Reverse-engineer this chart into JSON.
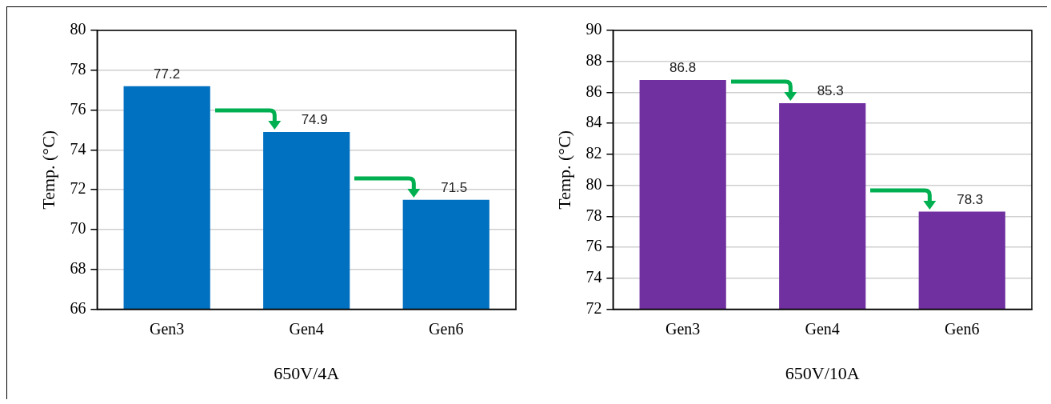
{
  "chart_data": [
    {
      "type": "bar",
      "xlabel": "650V/4A",
      "ylabel": "Temp. (°C)",
      "categories": [
        "Gen3",
        "Gen4",
        "Gen6"
      ],
      "values": [
        77.2,
        74.9,
        71.5
      ],
      "color": "#0070c0",
      "ylim": [
        66,
        80
      ],
      "yticks": [
        66,
        68,
        70,
        72,
        74,
        76,
        78,
        80
      ],
      "grid": "y",
      "data_labels": true
    },
    {
      "type": "bar",
      "xlabel": "650V/10A",
      "ylabel": "Temp. (°C)",
      "categories": [
        "Gen3",
        "Gen4",
        "Gen6"
      ],
      "values": [
        86.8,
        85.3,
        78.3
      ],
      "color": "#7030a0",
      "ylim": [
        72,
        90
      ],
      "yticks": [
        72,
        74,
        76,
        78,
        80,
        82,
        84,
        86,
        88,
        90
      ],
      "grid": "y",
      "data_labels": true
    }
  ]
}
